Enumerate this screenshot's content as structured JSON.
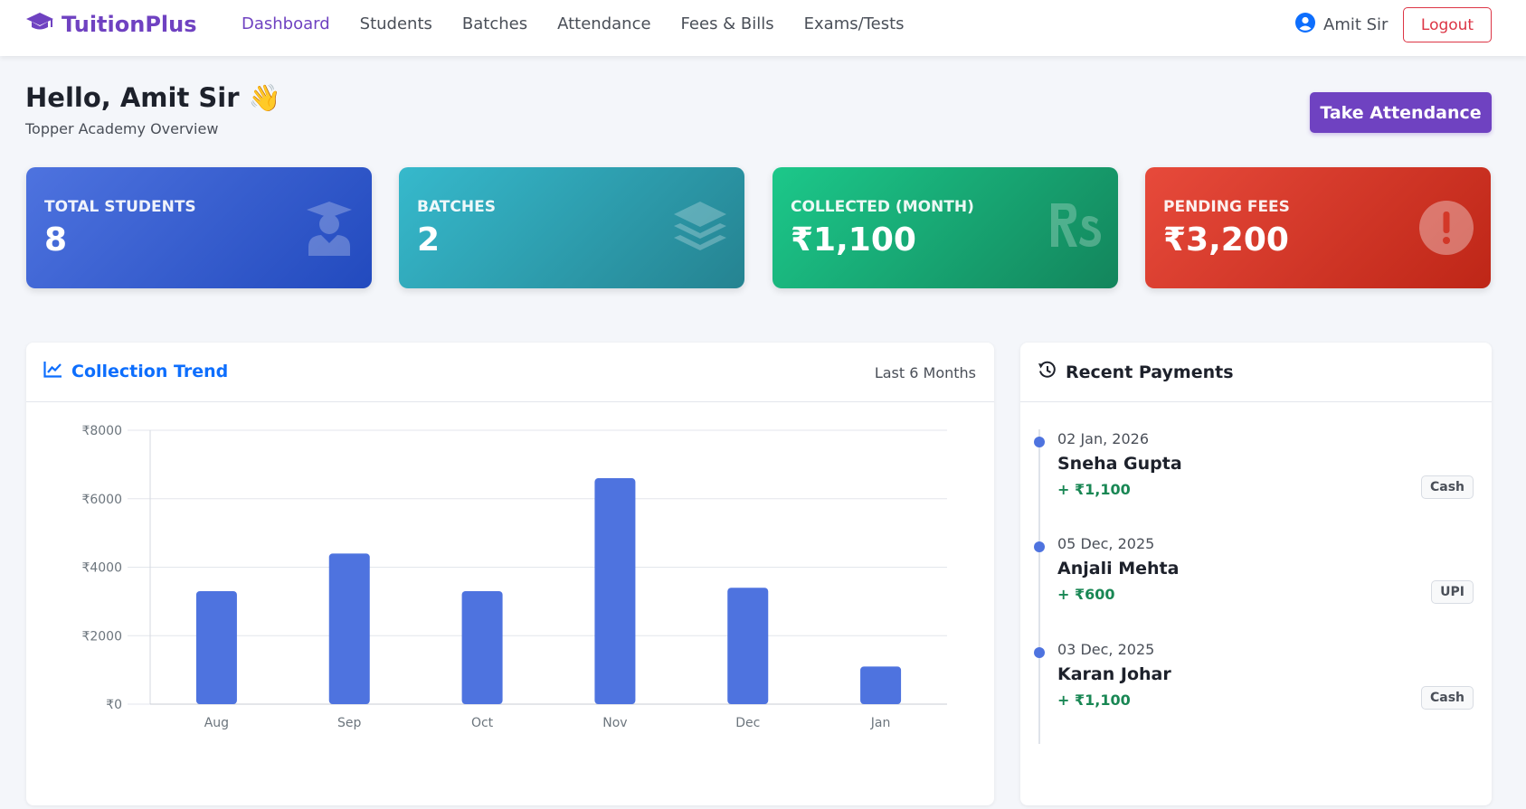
{
  "brand": {
    "name": "TuitionPlus",
    "icon": "graduation-cap-icon",
    "color": "#6f42c1"
  },
  "nav": {
    "links": [
      {
        "label": "Dashboard",
        "active": true
      },
      {
        "label": "Students",
        "active": false
      },
      {
        "label": "Batches",
        "active": false
      },
      {
        "label": "Attendance",
        "active": false
      },
      {
        "label": "Fees & Bills",
        "active": false
      },
      {
        "label": "Exams/Tests",
        "active": false
      }
    ],
    "user_name": "Amit Sir",
    "user_icon": "user-circle-icon",
    "logout_label": "Logout"
  },
  "header": {
    "greeting": "Hello, Amit Sir",
    "wave": "👋",
    "subtitle": "Topper Academy Overview",
    "take_attendance_label": "Take Attendance"
  },
  "stats": [
    {
      "label": "TOTAL STUDENTS",
      "value": "8",
      "icon": "user-graduate-icon",
      "color": "#4e73df"
    },
    {
      "label": "BATCHES",
      "value": "2",
      "icon": "layers-icon",
      "color": "#36b9cc"
    },
    {
      "label": "COLLECTED (MONTH)",
      "value": "₹1,100",
      "icon": "rupee-rs-icon",
      "color": "#1cc88a"
    },
    {
      "label": "PENDING FEES",
      "value": "₹3,200",
      "icon": "exclamation-circle-icon",
      "color": "#e74a3b"
    }
  ],
  "trend": {
    "title": "Collection Trend",
    "icon": "line-chart-icon",
    "period": "Last 6 Months"
  },
  "chart_data": {
    "type": "bar",
    "categories": [
      "Aug",
      "Sep",
      "Oct",
      "Nov",
      "Dec",
      "Jan"
    ],
    "values": [
      3300,
      4400,
      3300,
      6600,
      3400,
      1100
    ],
    "ylim": [
      0,
      8000
    ],
    "yticks": [
      "₹0",
      "₹2000",
      "₹4000",
      "₹6000",
      "₹8000"
    ],
    "ytick_values": [
      0,
      2000,
      4000,
      6000,
      8000
    ],
    "bar_color": "#4e73df",
    "grid": true,
    "title": "",
    "xlabel": "",
    "ylabel": ""
  },
  "payments": {
    "title": "Recent Payments",
    "icon": "history-icon",
    "items": [
      {
        "date": "02 Jan, 2026",
        "name": "Sneha Gupta",
        "amount": "+ ₹1,100",
        "mode": "Cash"
      },
      {
        "date": "05 Dec, 2025",
        "name": "Anjali Mehta",
        "amount": "+ ₹600",
        "mode": "UPI"
      },
      {
        "date": "03 Dec, 2025",
        "name": "Karan Johar",
        "amount": "+ ₹1,100",
        "mode": "Cash"
      }
    ]
  }
}
